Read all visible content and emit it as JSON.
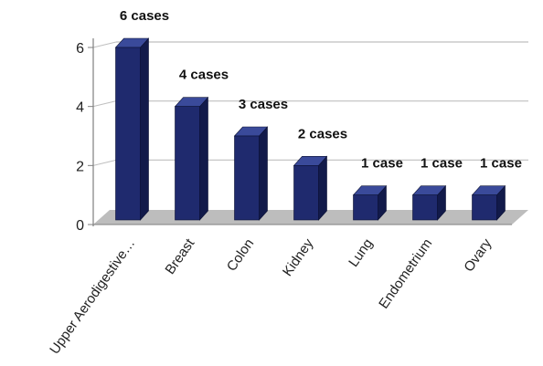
{
  "chart_data": {
    "type": "bar",
    "categories": [
      "Upper Aerodigestive…",
      "Breast",
      "Colon",
      "Kidney",
      "Lung",
      "Endometrium",
      "Ovary"
    ],
    "values": [
      6,
      4,
      3,
      2,
      1,
      1,
      1
    ],
    "data_labels": [
      "6 cases",
      "4 cases",
      "3 cases",
      "2 cases",
      "1 case",
      "1 case",
      "1 case"
    ],
    "y_ticks": [
      "0",
      "2",
      "4",
      "6"
    ],
    "ylim": [
      0,
      6
    ],
    "grid": true,
    "legend": "none",
    "style": "3d-column",
    "colors": {
      "bar_front": "#1f2a6e",
      "bar_side": "#121a4a",
      "bar_top": "#3a4a9a",
      "floor": "#bdbdbd",
      "grid": "#bfbfbf",
      "axis": "#7f7f7f"
    }
  }
}
